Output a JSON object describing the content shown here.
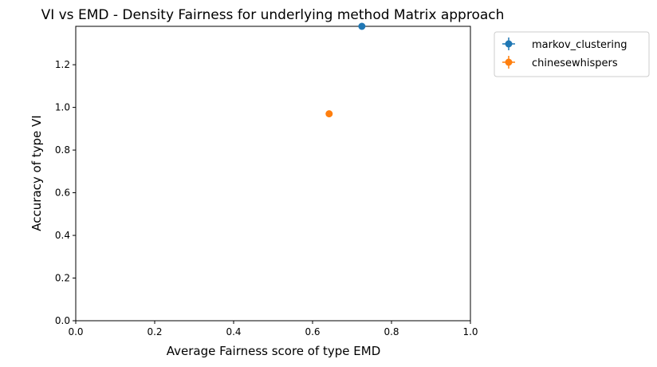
{
  "chart_data": {
    "type": "scatter",
    "title": "VI vs EMD - Density Fairness for underlying method Matrix approach",
    "xlabel": "Average Fairness score of type EMD",
    "ylabel": "Accuracy of type VI",
    "xlim": [
      0.0,
      1.0
    ],
    "ylim": [
      0.0,
      1.38
    ],
    "xticks": [
      "0.0",
      "0.2",
      "0.4",
      "0.6",
      "0.8",
      "1.0"
    ],
    "yticks": [
      "0.0",
      "0.2",
      "0.4",
      "0.6",
      "0.8",
      "1.0",
      "1.2"
    ],
    "grid": false,
    "legend_position": "outside-top-right",
    "series": [
      {
        "name": "markov_clustering",
        "color": "#1f77b4",
        "points": [
          {
            "x": 0.725,
            "y": 1.38
          }
        ]
      },
      {
        "name": "chinesewhispers",
        "color": "#ff7f0e",
        "points": [
          {
            "x": 0.642,
            "y": 0.97
          }
        ]
      }
    ]
  }
}
